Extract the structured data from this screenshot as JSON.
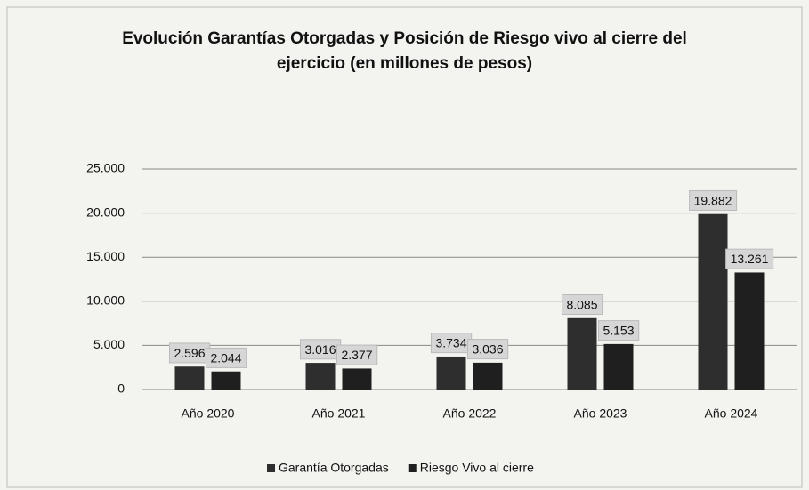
{
  "chart_data": {
    "type": "bar",
    "title": "Evolución Garantías Otorgadas y Posición de Riesgo vivo al cierre del ejercicio (en millones de pesos)",
    "categories": [
      "Año 2020",
      "Año 2021",
      "Año 2022",
      "Año 2023",
      "Año 2024"
    ],
    "series": [
      {
        "name": "Garantía Otorgadas",
        "color": "#2e2e2e",
        "values": [
          2596,
          3016,
          3734,
          8085,
          19882
        ],
        "value_labels": [
          "2.596",
          "3.016",
          "3.734",
          "8.085",
          "19.882"
        ]
      },
      {
        "name": "Riesgo Vivo al cierre",
        "color": "#1f1f1f",
        "values": [
          2044,
          2377,
          3036,
          5153,
          13261
        ],
        "value_labels": [
          "2.044",
          "2.377",
          "3.036",
          "5.153",
          "13.261"
        ]
      }
    ],
    "ylim": [
      0,
      25000
    ],
    "yticks": [
      {
        "value": 0,
        "label": "0"
      },
      {
        "value": 5000,
        "label": "5.000"
      },
      {
        "value": 10000,
        "label": "10.000"
      },
      {
        "value": 15000,
        "label": "15.000"
      },
      {
        "value": 20000,
        "label": "20.000"
      },
      {
        "value": 25000,
        "label": "25.000"
      }
    ],
    "grid": true,
    "legend": "bottom"
  }
}
